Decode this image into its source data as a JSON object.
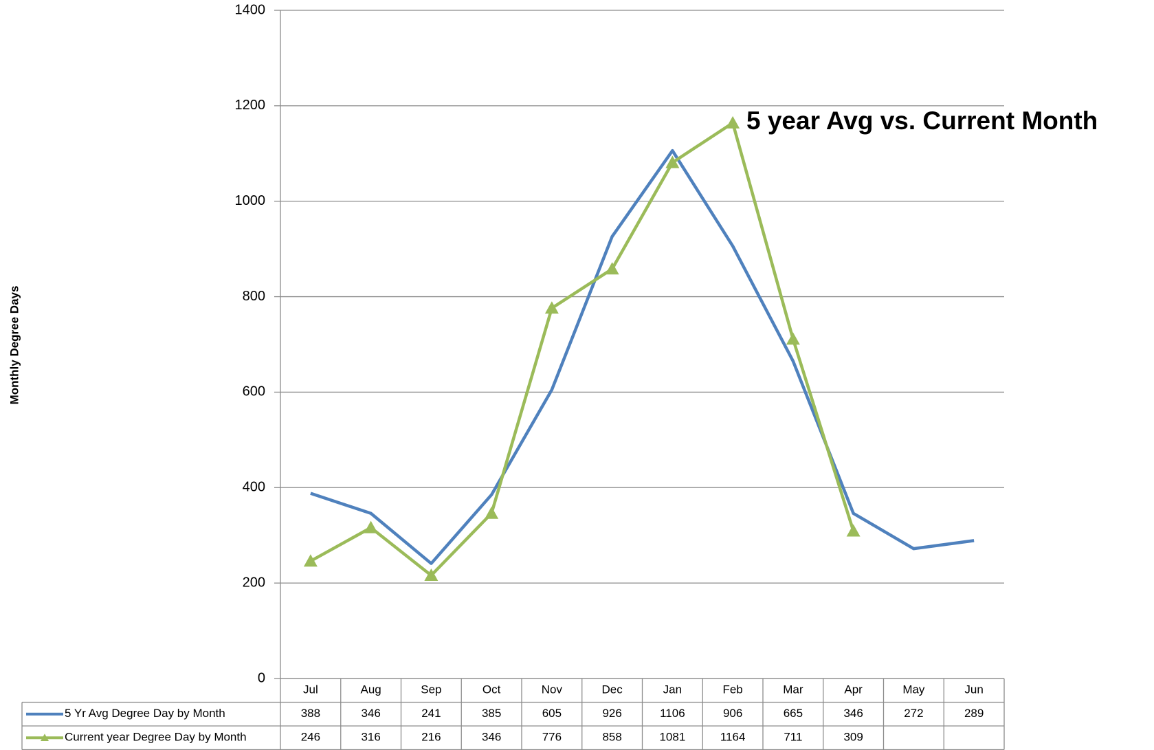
{
  "chart_data": {
    "type": "line",
    "title": "5 year Avg vs. Current Month",
    "y_label": "Monthly Degree Days",
    "categories": [
      "Jul",
      "Aug",
      "Sep",
      "Oct",
      "Nov",
      "Dec",
      "Jan",
      "Feb",
      "Mar",
      "Apr",
      "May",
      "Jun"
    ],
    "series": [
      {
        "name": "5 Yr Avg Degree Day by Month",
        "color": "#4f81bd",
        "values": [
          388,
          346,
          241,
          385,
          605,
          926,
          1106,
          906,
          665,
          346,
          272,
          289
        ]
      },
      {
        "name": "Current year Degree Day by Month",
        "color": "#9bbb59",
        "marker": "triangle",
        "values": [
          246,
          316,
          216,
          346,
          776,
          858,
          1081,
          1164,
          711,
          309,
          null,
          null
        ]
      }
    ],
    "ylim": [
      0,
      1400
    ],
    "yticks": [
      0,
      200,
      400,
      600,
      800,
      1000,
      1200,
      1400
    ],
    "grid": true,
    "data_table": true
  }
}
